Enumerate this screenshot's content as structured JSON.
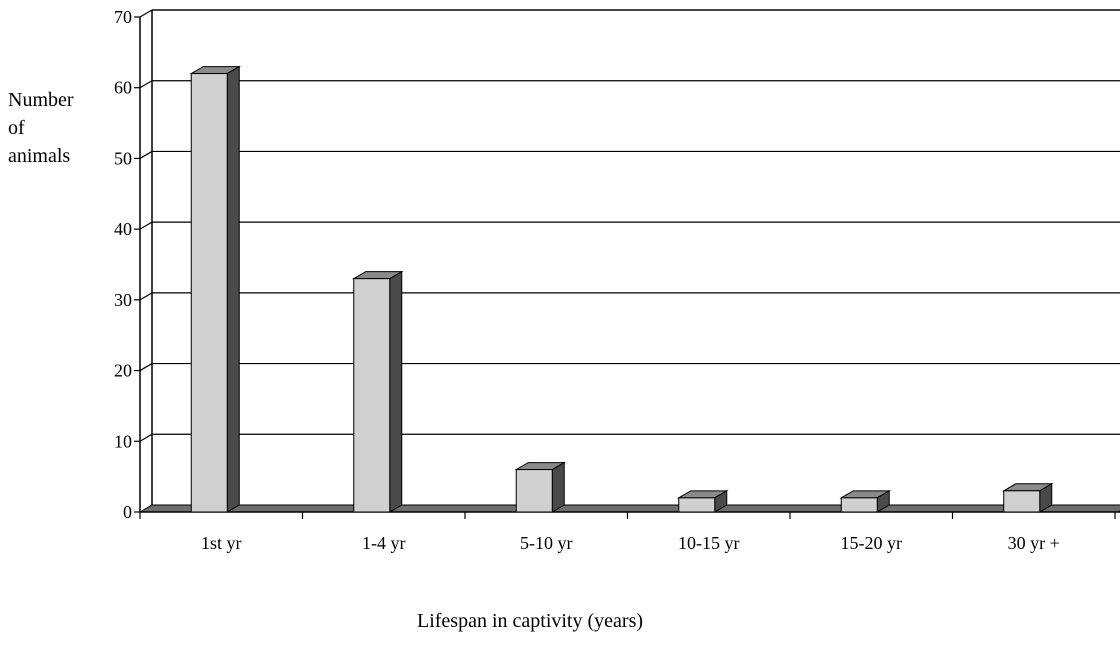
{
  "chart_data": {
    "type": "bar",
    "categories": [
      "1st yr",
      "1-4 yr",
      "5-10 yr",
      "10-15 yr",
      "15-20 yr",
      "30 yr +"
    ],
    "values": [
      62,
      33,
      6,
      2,
      2,
      3
    ],
    "xlabel": "Lifespan  in captivity (years)",
    "ylabel": "Number of animals",
    "ylabel_lines": [
      "Number",
      "of",
      "animals"
    ],
    "ylim": [
      0,
      70
    ],
    "yticks": [
      0,
      10,
      20,
      30,
      40,
      50,
      60,
      70
    ],
    "grid": true,
    "style": "3d",
    "colors": {
      "bar_face": "#d0d0d0",
      "bar_side": "#4a4a4a",
      "bar_top": "#8a8a8a",
      "floor": "#6e6e6e"
    }
  }
}
